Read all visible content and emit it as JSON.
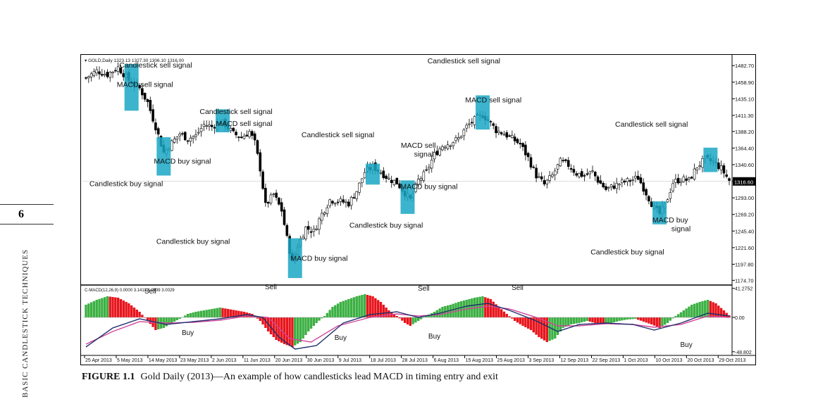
{
  "page": {
    "page_number": "6",
    "running_head": "BASIC CANDLESTICK TECHNIQUES",
    "caption_label": "FIGURE 1.1",
    "caption_text": "Gold Daily (2013)—An example of how candlesticks lead MACD in timing entry and exit"
  },
  "chart_data": {
    "type": "candlestick",
    "header": "GOLD,Daily  1323.13 1327.30 1306.10 1316.00",
    "indicator_header": "C-MACD(12,26,9) 0.0000 3.1411 4.0499 3.0029",
    "price_axis": {
      "ticks": [
        "1482.70",
        "1458.90",
        "1435.10",
        "1411.30",
        "1388.20",
        "1364.40",
        "1340.60",
        "1316.60",
        "1293.00",
        "1269.20",
        "1245.40",
        "1221.60",
        "1197.80",
        "1174.70"
      ],
      "current": "1316.60",
      "range": [
        1170,
        1495
      ]
    },
    "macd_axis": {
      "ticks": [
        "41.2752",
        "0.00",
        "-48.802"
      ],
      "range": [
        -52,
        44
      ]
    },
    "x_ticks": [
      "25 Apr 2013",
      "5 May 2013",
      "14 May 2013",
      "23 May 2013",
      "2 Jun 2013",
      "11 Jun 2013",
      "20 Jun 2013",
      "30 Jun 2013",
      "9 Jul 2013",
      "18 Jul 2013",
      "28 Jul 2013",
      "6 Aug 2013",
      "15 Aug 2013",
      "25 Aug 2013",
      "3 Sep 2013",
      "12 Sep 2013",
      "22 Sep 2013",
      "1 Oct 2013",
      "10 Oct 2013",
      "20 Oct 2013",
      "29 Oct 2013"
    ],
    "anchors": [
      [
        0,
        1465
      ],
      [
        4,
        1475
      ],
      [
        8,
        1470
      ],
      [
        12,
        1480
      ],
      [
        16,
        1462
      ],
      [
        20,
        1450
      ],
      [
        23,
        1430
      ],
      [
        26,
        1395
      ],
      [
        29,
        1358
      ],
      [
        32,
        1372
      ],
      [
        35,
        1385
      ],
      [
        38,
        1378
      ],
      [
        41,
        1382
      ],
      [
        44,
        1398
      ],
      [
        47,
        1395
      ],
      [
        50,
        1402
      ],
      [
        52,
        1398
      ],
      [
        55,
        1385
      ],
      [
        58,
        1380
      ],
      [
        61,
        1388
      ],
      [
        63,
        1372
      ],
      [
        65,
        1335
      ],
      [
        67,
        1282
      ],
      [
        70,
        1298
      ],
      [
        73,
        1275
      ],
      [
        75,
        1235
      ],
      [
        77,
        1200
      ],
      [
        79,
        1225
      ],
      [
        82,
        1250
      ],
      [
        85,
        1245
      ],
      [
        88,
        1270
      ],
      [
        91,
        1290
      ],
      [
        95,
        1288
      ],
      [
        98,
        1285
      ],
      [
        101,
        1303
      ],
      [
        104,
        1330
      ],
      [
        107,
        1338
      ],
      [
        110,
        1330
      ],
      [
        113,
        1320
      ],
      [
        116,
        1315
      ],
      [
        119,
        1300
      ],
      [
        121,
        1290
      ],
      [
        124,
        1318
      ],
      [
        127,
        1330
      ],
      [
        130,
        1355
      ],
      [
        133,
        1368
      ],
      [
        136,
        1372
      ],
      [
        139,
        1378
      ],
      [
        142,
        1395
      ],
      [
        145,
        1405
      ],
      [
        148,
        1412
      ],
      [
        150,
        1405
      ],
      [
        153,
        1390
      ],
      [
        156,
        1385
      ],
      [
        159,
        1378
      ],
      [
        162,
        1370
      ],
      [
        165,
        1350
      ],
      [
        168,
        1325
      ],
      [
        171,
        1312
      ],
      [
        174,
        1325
      ],
      [
        177,
        1345
      ],
      [
        180,
        1340
      ],
      [
        183,
        1328
      ],
      [
        186,
        1325
      ],
      [
        189,
        1330
      ],
      [
        191,
        1318
      ],
      [
        194,
        1305
      ],
      [
        197,
        1310
      ],
      [
        200,
        1315
      ],
      [
        203,
        1318
      ],
      [
        206,
        1322
      ],
      [
        209,
        1300
      ],
      [
        212,
        1278
      ],
      [
        214,
        1270
      ],
      [
        216,
        1282
      ],
      [
        219,
        1315
      ],
      [
        222,
        1320
      ],
      [
        225,
        1318
      ],
      [
        228,
        1338
      ],
      [
        231,
        1348
      ],
      [
        234,
        1345
      ],
      [
        237,
        1335
      ],
      [
        240,
        1318
      ]
    ],
    "macd_hist_anchors": [
      [
        0,
        18
      ],
      [
        4,
        25
      ],
      [
        8,
        30
      ],
      [
        12,
        28
      ],
      [
        16,
        20
      ],
      [
        20,
        8
      ],
      [
        23,
        -5
      ],
      [
        26,
        -18
      ],
      [
        29,
        -15
      ],
      [
        32,
        -8
      ],
      [
        35,
        -2
      ],
      [
        38,
        5
      ],
      [
        41,
        8
      ],
      [
        44,
        10
      ],
      [
        47,
        12
      ],
      [
        50,
        14
      ],
      [
        53,
        12
      ],
      [
        56,
        10
      ],
      [
        59,
        8
      ],
      [
        62,
        5
      ],
      [
        65,
        -5
      ],
      [
        68,
        -20
      ],
      [
        71,
        -32
      ],
      [
        74,
        -38
      ],
      [
        77,
        -42
      ],
      [
        80,
        -35
      ],
      [
        83,
        -20
      ],
      [
        86,
        -8
      ],
      [
        89,
        2
      ],
      [
        92,
        15
      ],
      [
        95,
        22
      ],
      [
        98,
        26
      ],
      [
        101,
        30
      ],
      [
        104,
        33
      ],
      [
        107,
        30
      ],
      [
        110,
        22
      ],
      [
        113,
        10
      ],
      [
        116,
        2
      ],
      [
        119,
        -8
      ],
      [
        121,
        -12
      ],
      [
        124,
        -5
      ],
      [
        127,
        2
      ],
      [
        130,
        8
      ],
      [
        133,
        15
      ],
      [
        136,
        18
      ],
      [
        139,
        22
      ],
      [
        142,
        25
      ],
      [
        145,
        28
      ],
      [
        148,
        30
      ],
      [
        151,
        26
      ],
      [
        154,
        15
      ],
      [
        157,
        5
      ],
      [
        160,
        -5
      ],
      [
        163,
        -12
      ],
      [
        166,
        -18
      ],
      [
        169,
        -28
      ],
      [
        172,
        -35
      ],
      [
        175,
        -30
      ],
      [
        178,
        -15
      ],
      [
        181,
        -10
      ],
      [
        184,
        -8
      ],
      [
        187,
        -5
      ],
      [
        190,
        -8
      ],
      [
        193,
        -10
      ],
      [
        196,
        -8
      ],
      [
        199,
        -5
      ],
      [
        202,
        -3
      ],
      [
        205,
        -2
      ],
      [
        208,
        -6
      ],
      [
        211,
        -10
      ],
      [
        214,
        -15
      ],
      [
        217,
        -8
      ],
      [
        220,
        2
      ],
      [
        223,
        10
      ],
      [
        226,
        18
      ],
      [
        229,
        22
      ],
      [
        232,
        25
      ],
      [
        235,
        20
      ],
      [
        238,
        10
      ],
      [
        240,
        3
      ]
    ],
    "macd_line_anchors": [
      [
        0,
        -42
      ],
      [
        10,
        -15
      ],
      [
        20,
        -2
      ],
      [
        30,
        -10
      ],
      [
        40,
        -6
      ],
      [
        50,
        -2
      ],
      [
        60,
        4
      ],
      [
        66,
        0
      ],
      [
        72,
        -28
      ],
      [
        78,
        -45
      ],
      [
        86,
        -40
      ],
      [
        96,
        -8
      ],
      [
        106,
        4
      ],
      [
        116,
        8
      ],
      [
        124,
        0
      ],
      [
        132,
        6
      ],
      [
        142,
        16
      ],
      [
        150,
        20
      ],
      [
        158,
        10
      ],
      [
        168,
        -5
      ],
      [
        176,
        -20
      ],
      [
        184,
        -10
      ],
      [
        194,
        -8
      ],
      [
        204,
        -10
      ],
      [
        212,
        -18
      ],
      [
        222,
        -8
      ],
      [
        232,
        6
      ],
      [
        240,
        2
      ]
    ],
    "signal_line_anchors": [
      [
        0,
        -38
      ],
      [
        10,
        -20
      ],
      [
        20,
        -6
      ],
      [
        30,
        -8
      ],
      [
        40,
        -7
      ],
      [
        50,
        -4
      ],
      [
        60,
        2
      ],
      [
        68,
        0
      ],
      [
        76,
        -30
      ],
      [
        84,
        -35
      ],
      [
        94,
        -12
      ],
      [
        106,
        0
      ],
      [
        116,
        5
      ],
      [
        124,
        2
      ],
      [
        132,
        4
      ],
      [
        142,
        12
      ],
      [
        150,
        16
      ],
      [
        158,
        12
      ],
      [
        168,
        0
      ],
      [
        176,
        -12
      ],
      [
        184,
        -12
      ],
      [
        194,
        -9
      ],
      [
        204,
        -10
      ],
      [
        212,
        -14
      ],
      [
        222,
        -10
      ],
      [
        232,
        2
      ],
      [
        240,
        0
      ]
    ],
    "signal_boxes": [
      {
        "i": 17,
        "lo": 1418,
        "hi": 1485
      },
      {
        "i": 29,
        "lo": 1325,
        "hi": 1380
      },
      {
        "i": 51,
        "lo": 1387,
        "hi": 1420
      },
      {
        "i": 107,
        "lo": 1312,
        "hi": 1342
      },
      {
        "i": 120,
        "lo": 1270,
        "hi": 1318
      },
      {
        "i": 78,
        "lo": 1178,
        "hi": 1235
      },
      {
        "i": 148,
        "lo": 1391,
        "hi": 1440
      },
      {
        "i": 214,
        "lo": 1255,
        "hi": 1288
      },
      {
        "i": 233,
        "lo": 1330,
        "hi": 1365
      }
    ],
    "annotations": [
      {
        "text": "Candlestick sell signal",
        "i": 26,
        "p": 1480
      },
      {
        "text": "MACD sell signal",
        "i": 22,
        "p": 1452
      },
      {
        "text": "Candlestick sell signal",
        "i": 56,
        "p": 1413
      },
      {
        "text": "MACD sell signal",
        "i": 59,
        "p": 1396
      },
      {
        "text": "MACD buy signal",
        "i": 36,
        "p": 1342
      },
      {
        "text": "Candlestick buy signal",
        "i": 15,
        "p": 1310
      },
      {
        "text": "Candlestick sell signal",
        "i": 94,
        "p": 1380
      },
      {
        "text": "MACD sell",
        "i": 124,
        "p": 1365
      },
      {
        "text": "signal",
        "i": 126,
        "p": 1352
      },
      {
        "text": "MACD buy signal",
        "i": 128,
        "p": 1306
      },
      {
        "text": "Candlestick buy signal",
        "i": 112,
        "p": 1250
      },
      {
        "text": "Candlestick buy signal",
        "i": 40,
        "p": 1227
      },
      {
        "text": "MACD buy signal",
        "i": 87,
        "p": 1203
      },
      {
        "text": "Candlestick sell signal",
        "i": 141,
        "p": 1486
      },
      {
        "text": "MACD sell signal",
        "i": 152,
        "p": 1430
      },
      {
        "text": "Candlestick sell signal",
        "i": 211,
        "p": 1395
      },
      {
        "text": "MACD buy",
        "i": 218,
        "p": 1258
      },
      {
        "text": "signal",
        "i": 222,
        "p": 1245
      },
      {
        "text": "Candlestick buy signal",
        "i": 202,
        "p": 1212
      }
    ],
    "macd_annotations": [
      {
        "text": "Sell",
        "i": 24,
        "v": 34
      },
      {
        "text": "Buy",
        "i": 38,
        "v": -25
      },
      {
        "text": "Sell",
        "i": 69,
        "v": 40
      },
      {
        "text": "Buy",
        "i": 95,
        "v": -32
      },
      {
        "text": "Sell",
        "i": 126,
        "v": 38
      },
      {
        "text": "Buy",
        "i": 130,
        "v": -30
      },
      {
        "text": "Sell",
        "i": 161,
        "v": 39
      },
      {
        "text": "Buy",
        "i": 224,
        "v": -42
      }
    ]
  }
}
